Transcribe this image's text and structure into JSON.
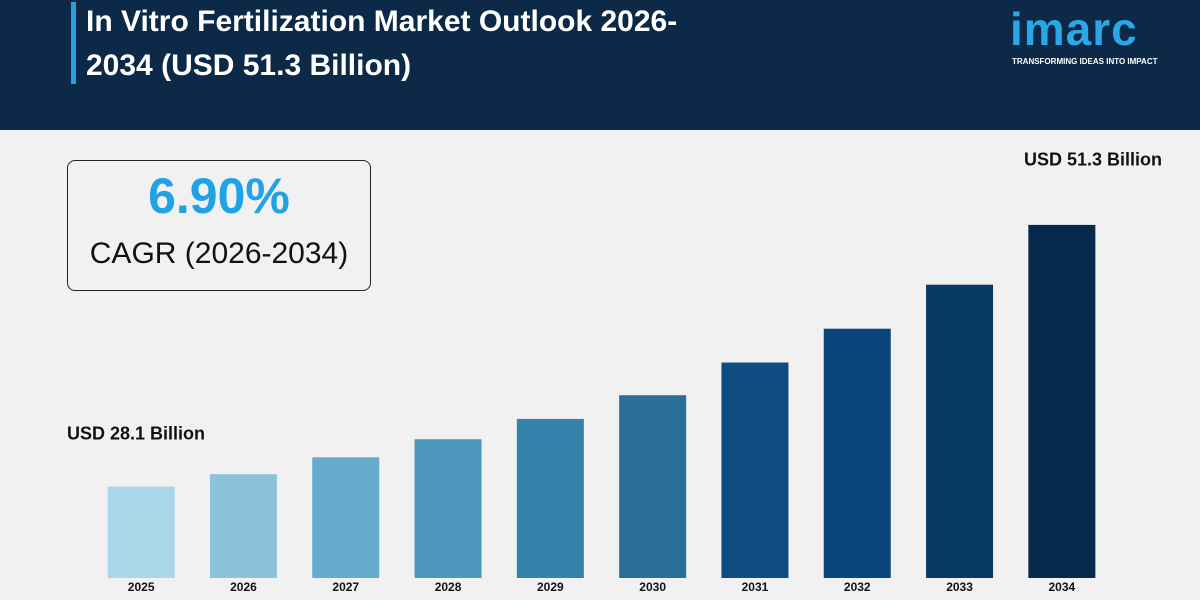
{
  "chart_data": {
    "type": "bar",
    "title": "In Vitro Fertilization Market Outlook 2026-2034 (USD 51.3 Billion)",
    "categories": [
      "2025",
      "2026",
      "2027",
      "2028",
      "2029",
      "2030",
      "2031",
      "2032",
      "2033",
      "2034"
    ],
    "values": [
      28.1,
      29.2,
      30.7,
      32.3,
      34.1,
      36.2,
      39.1,
      42.1,
      46.0,
      51.3
    ],
    "value_labels": [
      "USD 28.1 Billion",
      null,
      null,
      null,
      null,
      null,
      null,
      null,
      null,
      "USD 51.3 Billion"
    ],
    "colors": [
      "#a9d6e8",
      "#8cc2dc",
      "#66abcb",
      "#4d97bd",
      "#3483aa",
      "#2a6f98",
      "#0f4c80",
      "#0b467a",
      "#083a66",
      "#072a4c"
    ],
    "ylim": [
      20,
      52
    ],
    "callout": {
      "value": "6.90%",
      "label": "CAGR (2026-2034)"
    }
  },
  "logo": {
    "name": "imarc",
    "tagline": "TRANSFORMING IDEAS INTO IMPACT"
  }
}
